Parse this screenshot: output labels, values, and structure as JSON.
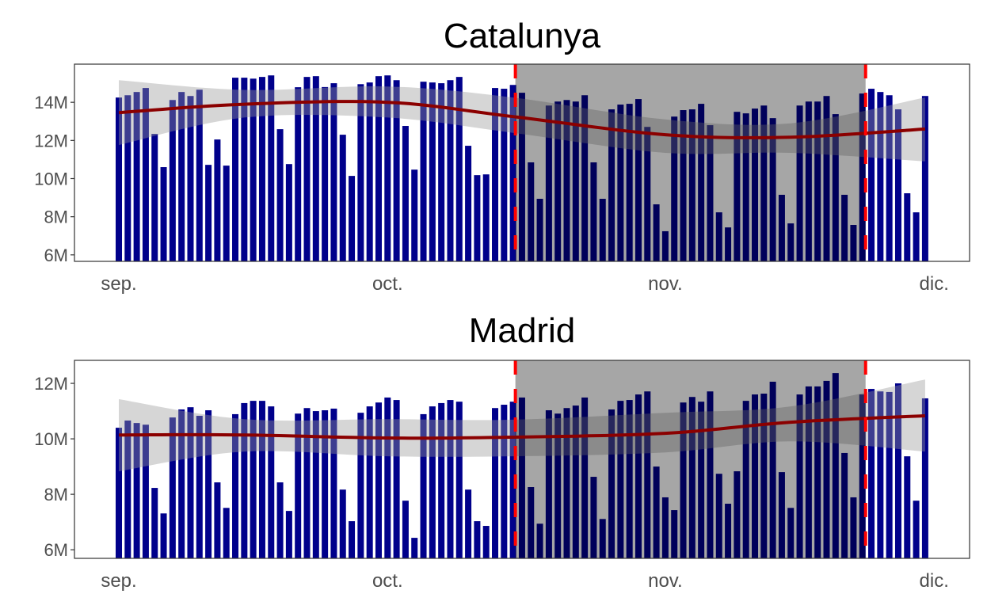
{
  "colors": {
    "bars": "#00008B",
    "smooth": "#8B0000",
    "band": "#999999",
    "highlight": "#000000",
    "marker": "#FF0000"
  },
  "x_dates": [
    "09-01",
    "09-02",
    "09-03",
    "09-04",
    "09-05",
    "09-06",
    "09-07",
    "09-08",
    "09-09",
    "09-10",
    "09-11",
    "09-12",
    "09-13",
    "09-14",
    "09-15",
    "09-16",
    "09-17",
    "09-18",
    "09-19",
    "09-20",
    "09-21",
    "09-22",
    "09-23",
    "09-24",
    "09-25",
    "09-26",
    "09-27",
    "09-28",
    "09-29",
    "09-30",
    "10-01",
    "10-02",
    "10-03",
    "10-04",
    "10-05",
    "10-06",
    "10-07",
    "10-08",
    "10-09",
    "10-10",
    "10-11",
    "10-12",
    "10-13",
    "10-14",
    "10-15",
    "10-16",
    "10-17",
    "10-18",
    "10-19",
    "10-20",
    "10-21",
    "10-22",
    "10-23",
    "10-24",
    "10-25",
    "10-26",
    "10-27",
    "10-28",
    "10-29",
    "10-30",
    "10-31",
    "11-01",
    "11-02",
    "11-03",
    "11-04",
    "11-05",
    "11-06",
    "11-07",
    "11-08",
    "11-09",
    "11-10",
    "11-11",
    "11-12",
    "11-13",
    "11-14",
    "11-15",
    "11-16",
    "11-17",
    "11-18",
    "11-19",
    "11-20",
    "11-21",
    "11-22",
    "11-23",
    "11-24",
    "11-25",
    "11-26",
    "11-27",
    "11-28",
    "11-29",
    "11-30"
  ],
  "chart_data": [
    {
      "type": "bar",
      "title": "Catalunya",
      "ylim": [
        5.66,
        16
      ],
      "y_ticks": [
        {
          "value": 6,
          "label": "6M"
        },
        {
          "value": 8,
          "label": "8M"
        },
        {
          "value": 10,
          "label": "10M"
        },
        {
          "value": 12,
          "label": "12M"
        },
        {
          "value": 14,
          "label": "14M"
        }
      ],
      "x_ticks": [
        {
          "date": "09-01",
          "label": "sep."
        },
        {
          "date": "10-01",
          "label": "oct."
        },
        {
          "date": "11-01",
          "label": "nov."
        },
        {
          "date": "12-01",
          "label": "dic."
        }
      ],
      "values": [
        14.25,
        14.37,
        14.54,
        14.75,
        12.34,
        10.6,
        14.12,
        14.54,
        14.33,
        14.66,
        10.72,
        12.05,
        10.68,
        15.29,
        15.29,
        15.24,
        15.33,
        15.41,
        12.59,
        10.76,
        14.79,
        15.33,
        15.37,
        14.8,
        15.0,
        12.3,
        10.14,
        14.95,
        15.04,
        15.37,
        15.41,
        15.16,
        12.76,
        10.47,
        15.08,
        15.04,
        15.0,
        15.16,
        15.33,
        11.72,
        10.18,
        10.22,
        14.75,
        14.71,
        14.91,
        14.5,
        10.85,
        8.94,
        13.83,
        14.04,
        14.12,
        14.04,
        14.37,
        10.85,
        8.94,
        13.63,
        13.88,
        13.92,
        14.17,
        12.71,
        8.65,
        7.24,
        13.25,
        13.59,
        13.63,
        13.92,
        12.8,
        8.23,
        7.44,
        13.5,
        13.42,
        13.67,
        13.83,
        13.17,
        9.15,
        7.65,
        13.83,
        14.04,
        14.04,
        14.33,
        13.38,
        9.15,
        7.57,
        14.46,
        14.71,
        14.54,
        14.37,
        13.63,
        9.23,
        8.23,
        14.33
      ],
      "smooth": {
        "dates": [
          "09-01",
          "09-15",
          "10-01",
          "10-15",
          "11-01",
          "11-15",
          "11-30"
        ],
        "fit": [
          13.46,
          13.9,
          14.0,
          13.25,
          12.3,
          12.17,
          12.6
        ],
        "lower": [
          11.76,
          13.2,
          13.2,
          12.4,
          11.35,
          11.35,
          10.9
        ],
        "upper": [
          15.16,
          14.65,
          14.83,
          14.25,
          13.1,
          12.9,
          14.25
        ]
      },
      "highlight_range": [
        "10-15",
        "11-23"
      ]
    },
    {
      "type": "bar",
      "title": "Madrid",
      "ylim": [
        5.69,
        12.83
      ],
      "y_ticks": [
        {
          "value": 6,
          "label": "6M"
        },
        {
          "value": 8,
          "label": "8M"
        },
        {
          "value": 10,
          "label": "10M"
        },
        {
          "value": 12,
          "label": "12M"
        }
      ],
      "x_ticks": [
        {
          "date": "09-01",
          "label": "sep."
        },
        {
          "date": "10-01",
          "label": "oct."
        },
        {
          "date": "11-01",
          "label": "nov."
        },
        {
          "date": "12-01",
          "label": "dic."
        }
      ],
      "values": [
        10.4,
        10.66,
        10.57,
        10.51,
        8.23,
        7.31,
        10.77,
        11.06,
        11.14,
        10.83,
        11.03,
        8.43,
        7.51,
        10.89,
        11.29,
        11.37,
        11.37,
        11.17,
        8.43,
        7.4,
        10.91,
        11.11,
        11.0,
        11.03,
        11.09,
        8.17,
        7.03,
        10.94,
        11.17,
        11.31,
        11.49,
        11.4,
        7.77,
        6.43,
        10.89,
        11.17,
        11.29,
        11.4,
        11.34,
        8.17,
        7.03,
        6.86,
        11.11,
        11.23,
        11.34,
        11.49,
        8.26,
        6.94,
        11.03,
        10.91,
        11.11,
        11.2,
        11.49,
        8.63,
        7.11,
        11.06,
        11.37,
        11.4,
        11.6,
        11.71,
        9.0,
        7.89,
        7.43,
        11.31,
        11.51,
        11.34,
        11.71,
        8.74,
        7.66,
        8.83,
        11.37,
        11.6,
        11.63,
        12.06,
        8.8,
        7.51,
        11.6,
        11.89,
        11.89,
        12.09,
        12.37,
        9.49,
        7.89,
        11.6,
        11.8,
        11.71,
        11.69,
        12.0,
        9.37,
        7.77,
        11.46
      ],
      "smooth": {
        "dates": [
          "09-01",
          "09-15",
          "10-01",
          "10-15",
          "11-01",
          "11-15",
          "11-30"
        ],
        "fit": [
          10.14,
          10.14,
          10.03,
          10.06,
          10.2,
          10.6,
          10.83
        ],
        "lower": [
          8.83,
          9.54,
          9.37,
          9.37,
          9.51,
          9.91,
          9.54
        ],
        "upper": [
          11.43,
          10.71,
          10.71,
          10.69,
          10.94,
          11.17,
          12.14
        ]
      },
      "highlight_range": [
        "10-15",
        "11-23"
      ]
    }
  ]
}
